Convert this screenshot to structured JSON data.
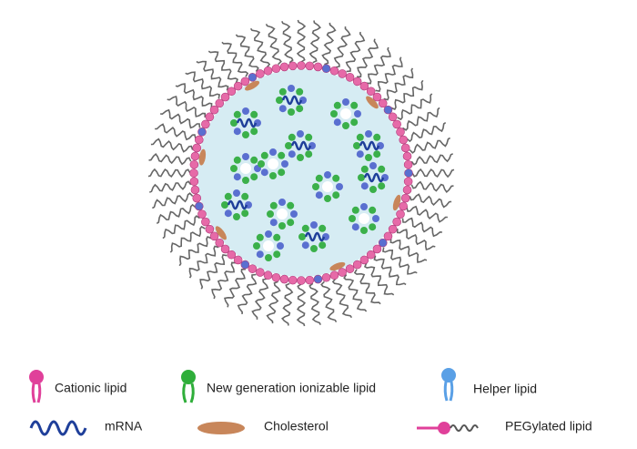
{
  "legend": {
    "items": [
      {
        "label": "Cationic lipid"
      },
      {
        "label": "New generation ionizable lipid"
      },
      {
        "label": "Helper lipid"
      },
      {
        "label": "mRNA"
      },
      {
        "label": "Cholesterol"
      },
      {
        "label": "PEGylated lipid"
      }
    ]
  }
}
